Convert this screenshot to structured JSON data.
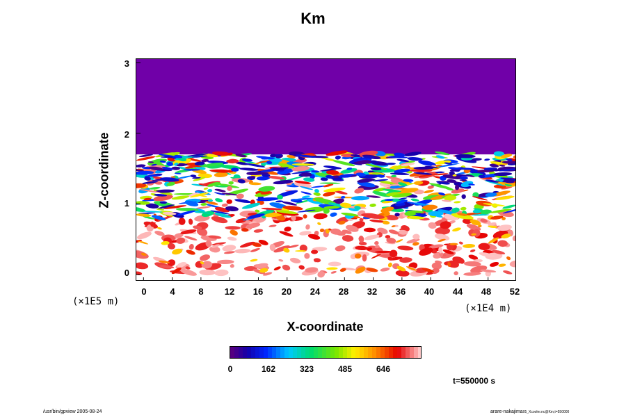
{
  "chart_data": {
    "type": "heatmap",
    "title": "Km",
    "xlabel": "X-coordinate",
    "ylabel": "Z-coordinate",
    "x_unit": "(×1E4 m)",
    "y_unit": "(×1E5 m)",
    "xlim": [
      -1,
      52
    ],
    "ylim": [
      -0.1,
      3.05
    ],
    "x_ticks": [
      "0",
      "4",
      "8",
      "12",
      "16",
      "20",
      "24",
      "28",
      "32",
      "36",
      "40",
      "44",
      "48",
      "52"
    ],
    "y_ticks": [
      "0",
      "1",
      "2",
      "3"
    ],
    "colorbar": {
      "ticks": [
        "0",
        "162",
        "323",
        "485",
        "646"
      ],
      "min": 0,
      "max": 810
    },
    "region_top_value": 0,
    "region_top_z_start": 1.7,
    "time_label": "t=550000 s"
  },
  "colors": {
    "top_region": "#7000a8",
    "background": "#ffffff"
  },
  "footer": {
    "left": "/usr/bin/gpview 2005-08-24",
    "right_main": "arare-nakajima",
    "right_sub": "05_Xcooler.nc@Km,t=550000"
  }
}
